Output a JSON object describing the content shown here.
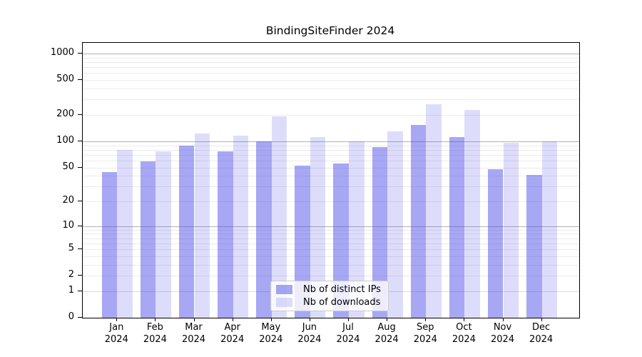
{
  "chart_data": {
    "type": "bar",
    "title": "BindingSiteFinder 2024",
    "categories": [
      "Jan",
      "Feb",
      "Mar",
      "Apr",
      "May",
      "Jun",
      "Jul",
      "Aug",
      "Sep",
      "Oct",
      "Nov",
      "Dec"
    ],
    "category_year": "2024",
    "series": [
      {
        "name": "Nb of distinct IPs",
        "color": "rgba(64,64,232,0.46)",
        "values": [
          44,
          59,
          89,
          76,
          100,
          52,
          56,
          86,
          154,
          111,
          48,
          41
        ]
      },
      {
        "name": "Nb of downloads",
        "color": "rgba(64,64,232,0.18)",
        "values": [
          80,
          77,
          124,
          116,
          192,
          112,
          100,
          131,
          265,
          230,
          97,
          99
        ]
      }
    ],
    "yscale": "log1p",
    "ylim": [
      0,
      1325
    ],
    "yticks": [
      0,
      1,
      2,
      5,
      10,
      20,
      50,
      100,
      200,
      500,
      1000
    ],
    "grid_major": [
      10,
      100,
      1000
    ],
    "grid_one": [
      1
    ],
    "grid_minor": [
      2,
      3,
      4,
      5,
      6,
      7,
      8,
      9,
      20,
      30,
      40,
      50,
      60,
      70,
      80,
      90,
      200,
      300,
      400,
      500,
      600,
      700,
      800,
      900
    ],
    "grid": true,
    "legend_position": "lower center",
    "xlabel": "",
    "ylabel": ""
  },
  "colors": {
    "bar_base": "#4040e8",
    "grid_major": "#b2b2b2",
    "grid_minor": "#ebebeb",
    "spine": "#000000",
    "background": "#ffffff"
  }
}
